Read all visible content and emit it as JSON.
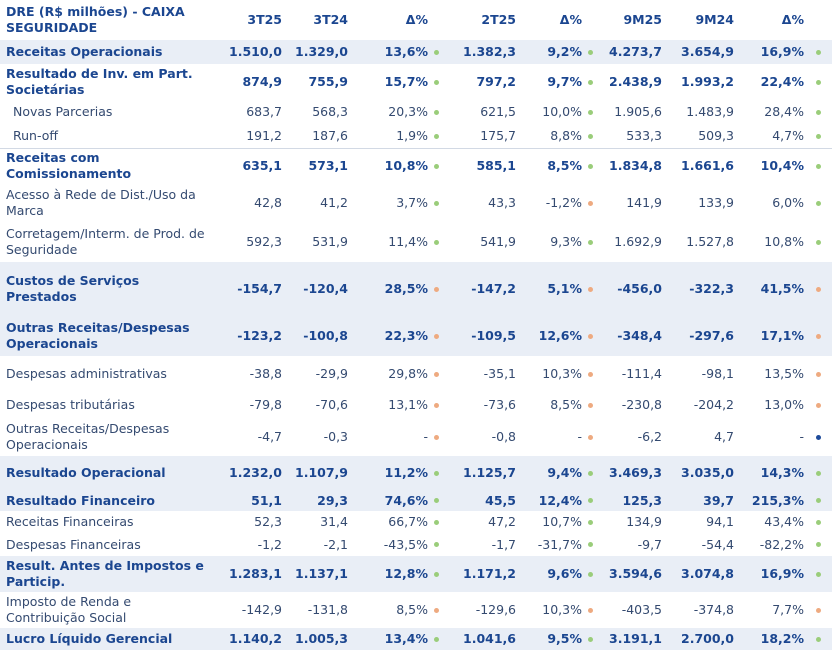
{
  "table": {
    "header": {
      "title": "DRE (R$ milhões) - CAIXA SEGURIDADE",
      "columns": [
        "3T25",
        "3T24",
        "Δ%",
        "2T25",
        "Δ%",
        "9M25",
        "9M24",
        "Δ%"
      ]
    },
    "colors": {
      "up": "#9acd7a",
      "down": "#eeaa80",
      "neutral": "#1e4b9a"
    },
    "rows": [
      {
        "label": "Receitas Operacionais",
        "bold": true,
        "hl": true,
        "values": [
          "1.510,0",
          "1.329,0",
          "13,6%",
          "1.382,3",
          "9,2%",
          "4.273,7",
          "3.654,9",
          "16,9%"
        ],
        "dots": [
          "up",
          "up",
          "up"
        ]
      },
      {
        "label": "Resultado de Inv. em Part. Societárias",
        "bold": true,
        "values": [
          "874,9",
          "755,9",
          "15,7%",
          "797,2",
          "9,7%",
          "2.438,9",
          "1.993,2",
          "22,4%"
        ],
        "dots": [
          "up",
          "up",
          "up"
        ]
      },
      {
        "label": "Novas Parcerias",
        "indent": true,
        "values": [
          "683,7",
          "568,3",
          "20,3%",
          "621,5",
          "10,0%",
          "1.905,6",
          "1.483,9",
          "28,4%"
        ],
        "dots": [
          "up",
          "up",
          "up"
        ]
      },
      {
        "label": "Run-off",
        "indent": true,
        "values": [
          "191,2",
          "187,6",
          "1,9%",
          "175,7",
          "8,8%",
          "533,3",
          "509,3",
          "4,7%"
        ],
        "dots": [
          "up",
          "up",
          "up"
        ]
      },
      {
        "label": "Receitas com Comissionamento",
        "bold": true,
        "values": [
          "635,1",
          "573,1",
          "10,8%",
          "585,1",
          "8,5%",
          "1.834,8",
          "1.661,6",
          "10,4%"
        ],
        "dots": [
          "up",
          "up",
          "up"
        ]
      },
      {
        "label": "Acesso à Rede de Dist./Uso da Marca",
        "values": [
          "42,8",
          "41,2",
          "3,7%",
          "43,3",
          "-1,2%",
          "141,9",
          "133,9",
          "6,0%"
        ],
        "dots": [
          "up",
          "down",
          "up"
        ]
      },
      {
        "label": "Corretagem/Interm. de Prod. de Seguridade",
        "values": [
          "592,3",
          "531,9",
          "11,4%",
          "541,9",
          "9,3%",
          "1.692,9",
          "1.527,8",
          "10,8%"
        ],
        "dots": [
          "up",
          "up",
          "up"
        ]
      },
      {
        "label": "Custos de Serviços Prestados",
        "bold": true,
        "hl": true,
        "values": [
          "-154,7",
          "-120,4",
          "28,5%",
          "-147,2",
          "5,1%",
          "-456,0",
          "-322,3",
          "41,5%"
        ],
        "dots": [
          "down",
          "down",
          "down"
        ]
      },
      {
        "label": "Outras Receitas/Despesas Operacionais",
        "bold": true,
        "hl": true,
        "values": [
          "-123,2",
          "-100,8",
          "22,3%",
          "-109,5",
          "12,6%",
          "-348,4",
          "-297,6",
          "17,1%"
        ],
        "dots": [
          "down",
          "down",
          "down"
        ]
      },
      {
        "label": "Despesas administrativas",
        "values": [
          "-38,8",
          "-29,9",
          "29,8%",
          "-35,1",
          "10,3%",
          "-111,4",
          "-98,1",
          "13,5%"
        ],
        "dots": [
          "down",
          "down",
          "down"
        ]
      },
      {
        "label": "Despesas tributárias",
        "values": [
          "-79,8",
          "-70,6",
          "13,1%",
          "-73,6",
          "8,5%",
          "-230,8",
          "-204,2",
          "13,0%"
        ],
        "dots": [
          "down",
          "down",
          "down"
        ]
      },
      {
        "label": "Outras Receitas/Despesas Operacionais",
        "values": [
          "-4,7",
          "-0,3",
          "-",
          "-0,8",
          "-",
          "-6,2",
          "4,7",
          "-"
        ],
        "dots": [
          "down",
          "down",
          "neutral"
        ]
      },
      {
        "label": "Resultado Operacional",
        "bold": true,
        "hl": true,
        "values": [
          "1.232,0",
          "1.107,9",
          "11,2%",
          "1.125,7",
          "9,4%",
          "3.469,3",
          "3.035,0",
          "14,3%"
        ],
        "dots": [
          "up",
          "up",
          "up"
        ]
      },
      {
        "label": "Resultado Financeiro",
        "bold": true,
        "hl": true,
        "values": [
          "51,1",
          "29,3",
          "74,6%",
          "45,5",
          "12,4%",
          "125,3",
          "39,7",
          "215,3%"
        ],
        "dots": [
          "up",
          "up",
          "up"
        ]
      },
      {
        "label": "Receitas Financeiras",
        "values": [
          "52,3",
          "31,4",
          "66,7%",
          "47,2",
          "10,7%",
          "134,9",
          "94,1",
          "43,4%"
        ],
        "dots": [
          "up",
          "up",
          "up"
        ]
      },
      {
        "label": "Despesas Financeiras",
        "values": [
          "-1,2",
          "-2,1",
          "-43,5%",
          "-1,7",
          "-31,7%",
          "-9,7",
          "-54,4",
          "-82,2%"
        ],
        "dots": [
          "up",
          "up",
          "up"
        ]
      },
      {
        "label": "Result. Antes de Impostos e Particip.",
        "bold": true,
        "hl": true,
        "values": [
          "1.283,1",
          "1.137,1",
          "12,8%",
          "1.171,2",
          "9,6%",
          "3.594,6",
          "3.074,8",
          "16,9%"
        ],
        "dots": [
          "up",
          "up",
          "up"
        ]
      },
      {
        "label": "Imposto de Renda e Contribuição Social",
        "values": [
          "-142,9",
          "-131,8",
          "8,5%",
          "-129,6",
          "10,3%",
          "-403,5",
          "-374,8",
          "7,7%"
        ],
        "dots": [
          "down",
          "down",
          "down"
        ]
      },
      {
        "label": "Lucro Líquido Gerencial",
        "bold": true,
        "hl": true,
        "values": [
          "1.140,2",
          "1.005,3",
          "13,4%",
          "1.041,6",
          "9,5%",
          "3.191,1",
          "2.700,0",
          "18,2%"
        ],
        "dots": [
          "up",
          "up",
          "up"
        ]
      }
    ]
  }
}
